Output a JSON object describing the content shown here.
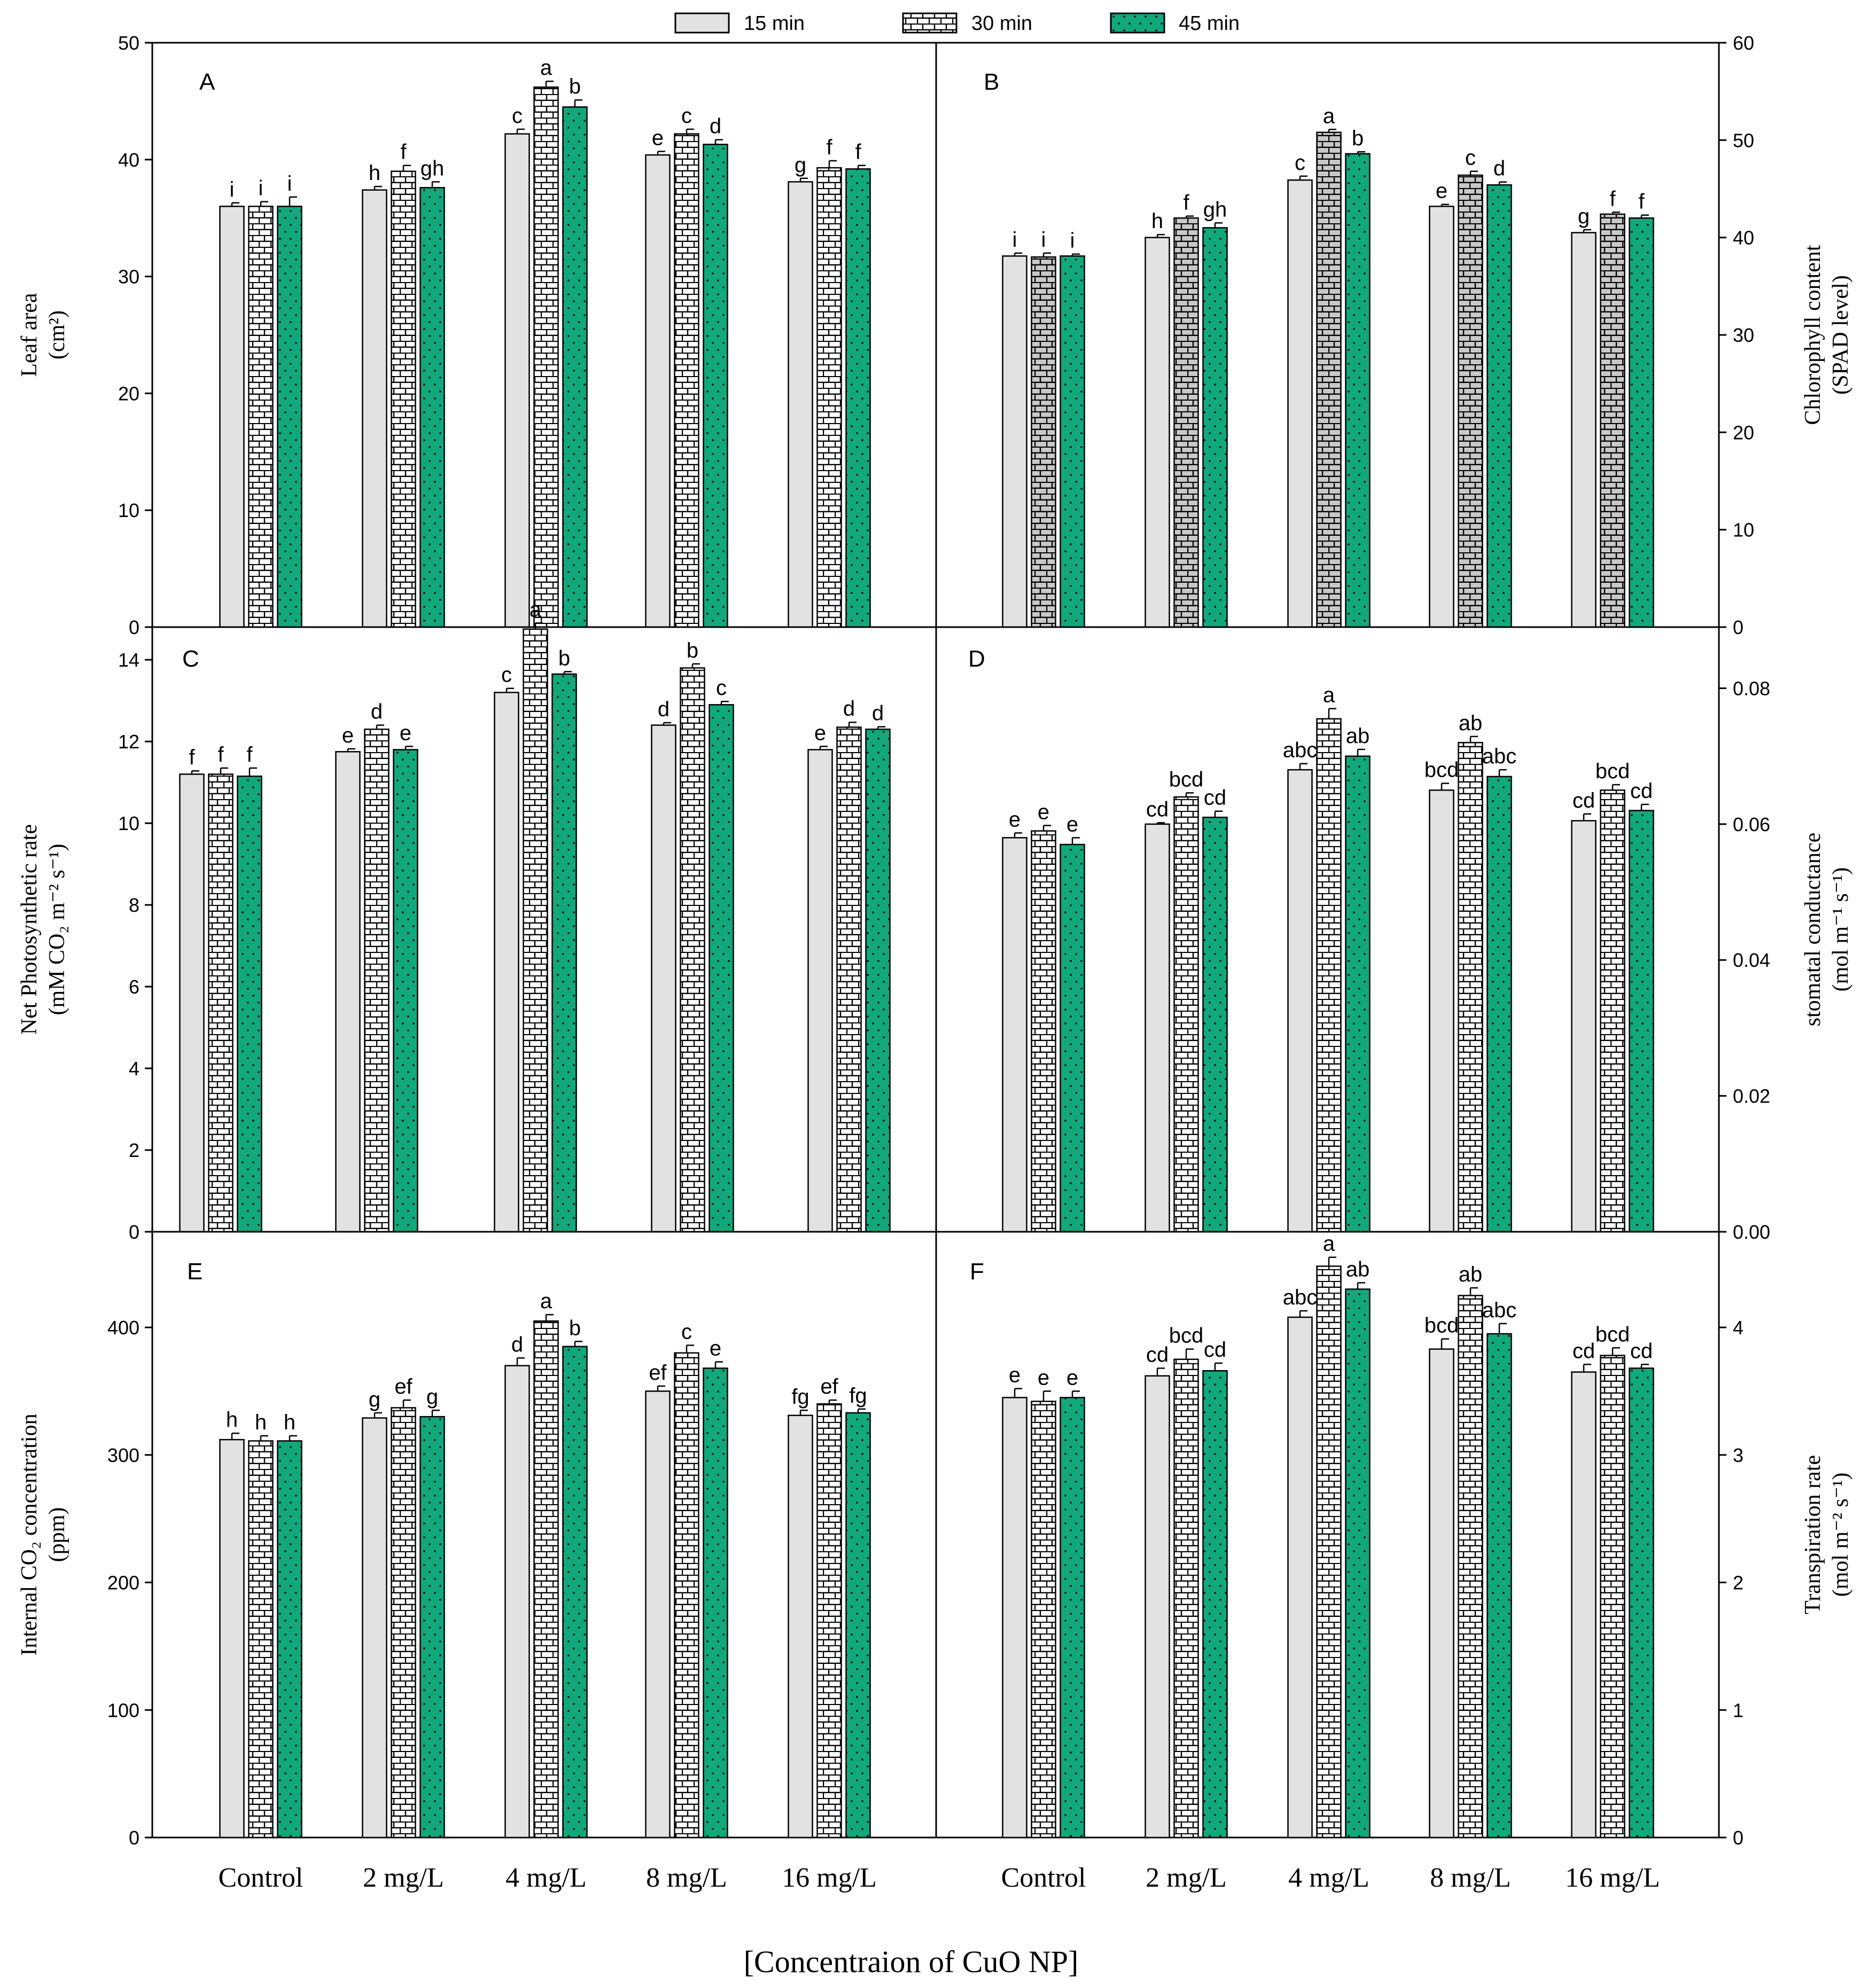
{
  "figure": {
    "legend": [
      {
        "label": "15 min",
        "pattern": "plain",
        "color": "#e2e2e2"
      },
      {
        "label": "30 min",
        "pattern": "brick",
        "color": "#ffffff"
      },
      {
        "label": "45 min",
        "pattern": "dots",
        "color": "#11a87c"
      }
    ],
    "xlabel": "[Concentraion of CuO NP]",
    "colors": {
      "bar15": "#e2e2e2",
      "bar30": "#ffffff",
      "bar45": "#11a87c",
      "frame": "#000000"
    }
  },
  "chart_data": [
    {
      "type": "bar",
      "panel": "A",
      "ylabel_line1": "Leaf area",
      "ylabel_line2": "(cm²)",
      "categories": [
        "Control",
        "2 mg/L",
        "4 mg/L",
        "8 mg/L",
        "16 mg/L"
      ],
      "ylim": [
        0,
        50
      ],
      "yticks": [
        0,
        10,
        20,
        30,
        40,
        50
      ],
      "tick_labels": [
        "0",
        "10",
        "20",
        "30",
        "40",
        "50"
      ],
      "series": [
        {
          "name": "15 min",
          "values": [
            36.0,
            37.4,
            42.2,
            40.4,
            38.1
          ],
          "errors": [
            0.3,
            0.3,
            0.4,
            0.3,
            0.3
          ],
          "letters": [
            "i",
            "h",
            "c",
            "e",
            "g"
          ]
        },
        {
          "name": "30 min",
          "values": [
            36.0,
            39.0,
            46.2,
            42.2,
            39.3
          ],
          "errors": [
            0.4,
            0.5,
            0.5,
            0.4,
            0.6
          ],
          "letters": [
            "i",
            "f",
            "a",
            "c",
            "f"
          ]
        },
        {
          "name": "45 min",
          "values": [
            36.0,
            37.6,
            44.5,
            41.3,
            39.2
          ],
          "errors": [
            0.8,
            0.5,
            0.6,
            0.4,
            0.3
          ],
          "letters": [
            "i",
            "gh",
            "b",
            "d",
            "f"
          ]
        }
      ]
    },
    {
      "type": "bar",
      "panel": "B",
      "ylabel_line1": "Chlorophyll content",
      "ylabel_line2": "(SPAD level)",
      "categories": [
        "Control",
        "2 mg/L",
        "4 mg/L",
        "8 mg/L",
        "16 mg/L"
      ],
      "ylim": [
        0,
        60
      ],
      "yticks": [
        0,
        10,
        20,
        30,
        40,
        50,
        60
      ],
      "tick_labels": [
        "0",
        "10",
        "20",
        "30",
        "40",
        "50",
        "60"
      ],
      "series": [
        {
          "name": "15 min",
          "values": [
            38.1,
            40.0,
            45.9,
            43.2,
            40.5
          ],
          "errors": [
            0.3,
            0.3,
            0.4,
            0.2,
            0.3
          ],
          "letters": [
            "i",
            "h",
            "c",
            "e",
            "g"
          ]
        },
        {
          "name": "30 min",
          "values": [
            38.0,
            42.0,
            50.8,
            46.4,
            42.4
          ],
          "errors": [
            0.4,
            0.2,
            0.3,
            0.4,
            0.2
          ],
          "letters": [
            "i",
            "f",
            "a",
            "c",
            "f"
          ]
        },
        {
          "name": "45 min",
          "values": [
            38.1,
            41.0,
            48.6,
            45.4,
            42.0
          ],
          "errors": [
            0.2,
            0.5,
            0.2,
            0.3,
            0.3
          ],
          "letters": [
            "i",
            "gh",
            "b",
            "d",
            "f"
          ]
        }
      ]
    },
    {
      "type": "bar",
      "panel": "C",
      "ylabel_line1": "Net Photosynthetic rate",
      "ylabel_line2": "(mM CO₂ m⁻² s⁻¹)",
      "categories": [
        "Control",
        "2 mg/L",
        "4 mg/L",
        "8 mg/L",
        "16 mg/L"
      ],
      "ylim": [
        0,
        14.8
      ],
      "yticks": [
        0,
        2,
        4,
        6,
        8,
        10,
        12,
        14
      ],
      "tick_labels": [
        "0",
        "2",
        "4",
        "6",
        "8",
        "10",
        "12",
        "14"
      ],
      "series": [
        {
          "name": "15 min",
          "values": [
            11.2,
            11.75,
            13.2,
            12.4,
            11.8
          ],
          "errors": [
            0.08,
            0.07,
            0.1,
            0.06,
            0.08
          ],
          "letters": [
            "f",
            "e",
            "c",
            "d",
            "e"
          ]
        },
        {
          "name": "30 min",
          "values": [
            11.2,
            12.3,
            14.75,
            13.8,
            12.35
          ],
          "errors": [
            0.15,
            0.1,
            0.15,
            0.1,
            0.12
          ],
          "letters": [
            "f",
            "d",
            "a",
            "b",
            "d"
          ]
        },
        {
          "name": "45 min",
          "values": [
            11.15,
            11.8,
            13.65,
            12.9,
            12.3
          ],
          "errors": [
            0.2,
            0.08,
            0.06,
            0.08,
            0.06
          ],
          "letters": [
            "f",
            "e",
            "b",
            "c",
            "d"
          ]
        }
      ]
    },
    {
      "type": "bar",
      "panel": "D",
      "ylabel_line1": "stomatal conductance",
      "ylabel_line2": "(mol m⁻¹ s⁻¹)",
      "categories": [
        "Control",
        "2 mg/L",
        "4 mg/L",
        "8 mg/L",
        "16 mg/L"
      ],
      "ylim": [
        0,
        0.089
      ],
      "yticks": [
        0,
        0.02,
        0.04,
        0.06,
        0.08
      ],
      "tick_labels": [
        "0.00",
        "0.02",
        "0.04",
        "0.06",
        "0.08"
      ],
      "series": [
        {
          "name": "15 min",
          "values": [
            0.058,
            0.06,
            0.068,
            0.065,
            0.0605
          ],
          "errors": [
            0.0007,
            0.0002,
            0.0009,
            0.001,
            0.001
          ],
          "letters": [
            "e",
            "cd",
            "abc",
            "bcd",
            "cd"
          ]
        },
        {
          "name": "30 min",
          "values": [
            0.059,
            0.064,
            0.0755,
            0.072,
            0.065
          ],
          "errors": [
            0.0008,
            0.0006,
            0.0015,
            0.0009,
            0.0008
          ],
          "letters": [
            "e",
            "bcd",
            "a",
            "ab",
            "bcd"
          ]
        },
        {
          "name": "45 min",
          "values": [
            0.057,
            0.061,
            0.07,
            0.067,
            0.062
          ],
          "errors": [
            0.001,
            0.0009,
            0.001,
            0.001,
            0.0009
          ],
          "letters": [
            "e",
            "cd",
            "ab",
            "abc",
            "cd"
          ]
        }
      ]
    },
    {
      "type": "bar",
      "panel": "E",
      "ylabel_line1": "Internal CO₂ concentration",
      "ylabel_line2": "(ppm)",
      "categories": [
        "Control",
        "2 mg/L",
        "4 mg/L",
        "8 mg/L",
        "16 mg/L"
      ],
      "ylim": [
        0,
        475
      ],
      "yticks": [
        0,
        100,
        200,
        300,
        400
      ],
      "tick_labels": [
        "0",
        "100",
        "200",
        "300",
        "400"
      ],
      "series": [
        {
          "name": "15 min",
          "values": [
            312,
            329,
            370,
            350,
            331
          ],
          "errors": [
            5,
            4,
            6,
            4,
            4
          ],
          "letters": [
            "h",
            "g",
            "d",
            "ef",
            "fg"
          ]
        },
        {
          "name": "30 min",
          "values": [
            311,
            337,
            405,
            380,
            340
          ],
          "errors": [
            4,
            6,
            5,
            6,
            3
          ],
          "letters": [
            "h",
            "ef",
            "a",
            "c",
            "ef"
          ]
        },
        {
          "name": "45 min",
          "values": [
            311,
            330,
            385,
            368,
            333
          ],
          "errors": [
            4,
            5,
            4,
            5,
            3
          ],
          "letters": [
            "h",
            "g",
            "b",
            "e",
            "fg"
          ]
        }
      ]
    },
    {
      "type": "bar",
      "panel": "F",
      "ylabel_line1": "Transpiration rate",
      "ylabel_line2": "(mol m⁻² s⁻¹)",
      "categories": [
        "Control",
        "2 mg/L",
        "4 mg/L",
        "8 mg/L",
        "16 mg/L"
      ],
      "ylim": [
        0,
        4.75
      ],
      "yticks": [
        0,
        1,
        2,
        3,
        4
      ],
      "tick_labels": [
        "0",
        "1",
        "2",
        "3",
        "4"
      ],
      "series": [
        {
          "name": "15 min",
          "values": [
            3.45,
            3.62,
            4.08,
            3.83,
            3.65
          ],
          "errors": [
            0.07,
            0.06,
            0.05,
            0.08,
            0.06
          ],
          "letters": [
            "e",
            "cd",
            "abc",
            "bcd",
            "cd"
          ]
        },
        {
          "name": "30 min",
          "values": [
            3.42,
            3.75,
            4.48,
            4.25,
            3.78
          ],
          "errors": [
            0.08,
            0.08,
            0.07,
            0.06,
            0.06
          ],
          "letters": [
            "e",
            "bcd",
            "a",
            "ab",
            "bcd"
          ]
        },
        {
          "name": "45 min",
          "values": [
            3.45,
            3.66,
            4.3,
            3.95,
            3.68
          ],
          "errors": [
            0.05,
            0.06,
            0.05,
            0.08,
            0.03
          ],
          "letters": [
            "e",
            "cd",
            "ab",
            "abc",
            "cd"
          ]
        }
      ]
    }
  ]
}
